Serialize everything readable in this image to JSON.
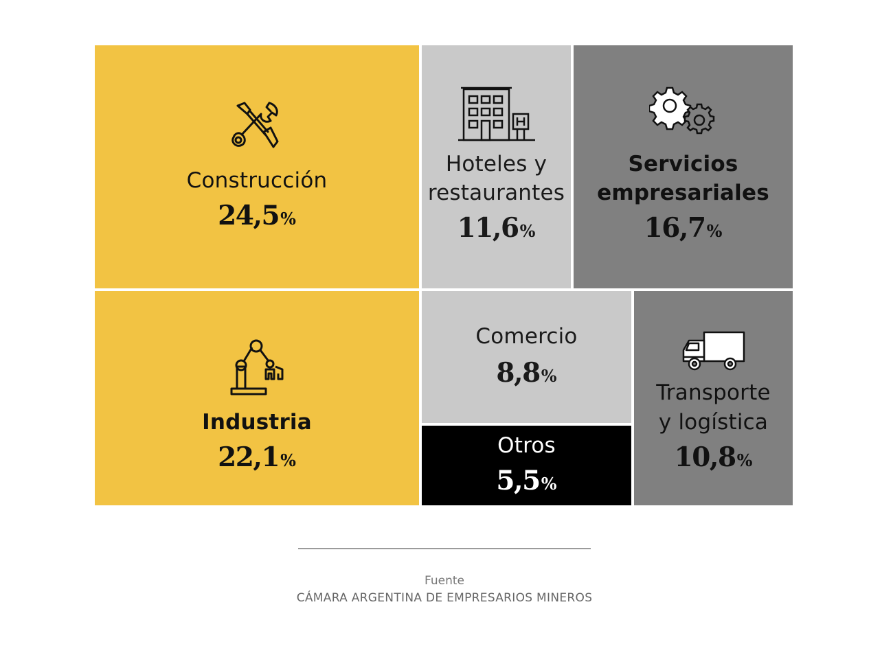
{
  "chart_data": {
    "type": "treemap",
    "unit": "%",
    "items": [
      {
        "id": "construccion",
        "label": "Construcción",
        "value": 24.5,
        "value_text": "24,5",
        "color": "#f2c343",
        "icon": "tools-icon"
      },
      {
        "id": "hoteles",
        "label_lines": [
          "Hoteles y",
          "restaurantes"
        ],
        "value": 11.6,
        "value_text": "11,6",
        "color": "#c9c9c9",
        "icon": "hotel-building-icon"
      },
      {
        "id": "servicios",
        "label_lines": [
          "Servicios",
          "empresariales"
        ],
        "value": 16.7,
        "value_text": "16,7",
        "color": "#808080",
        "icon": "gears-icon"
      },
      {
        "id": "industria",
        "label": "Industria",
        "value": 22.1,
        "value_text": "22,1",
        "color": "#f2c343",
        "icon": "robot-arm-icon"
      },
      {
        "id": "comercio",
        "label": "Comercio",
        "value": 8.8,
        "value_text": "8,8",
        "color": "#c9c9c9"
      },
      {
        "id": "otros",
        "label": "Otros",
        "value": 5.5,
        "value_text": "5,5",
        "color": "#000000"
      },
      {
        "id": "transporte",
        "label_lines": [
          "Transporte",
          "y logística"
        ],
        "value": 10.8,
        "value_text": "10,8",
        "color": "#808080",
        "icon": "truck-icon"
      }
    ]
  },
  "source": {
    "label": "Fuente",
    "name": "CÁMARA ARGENTINA DE EMPRESARIOS MINEROS"
  }
}
